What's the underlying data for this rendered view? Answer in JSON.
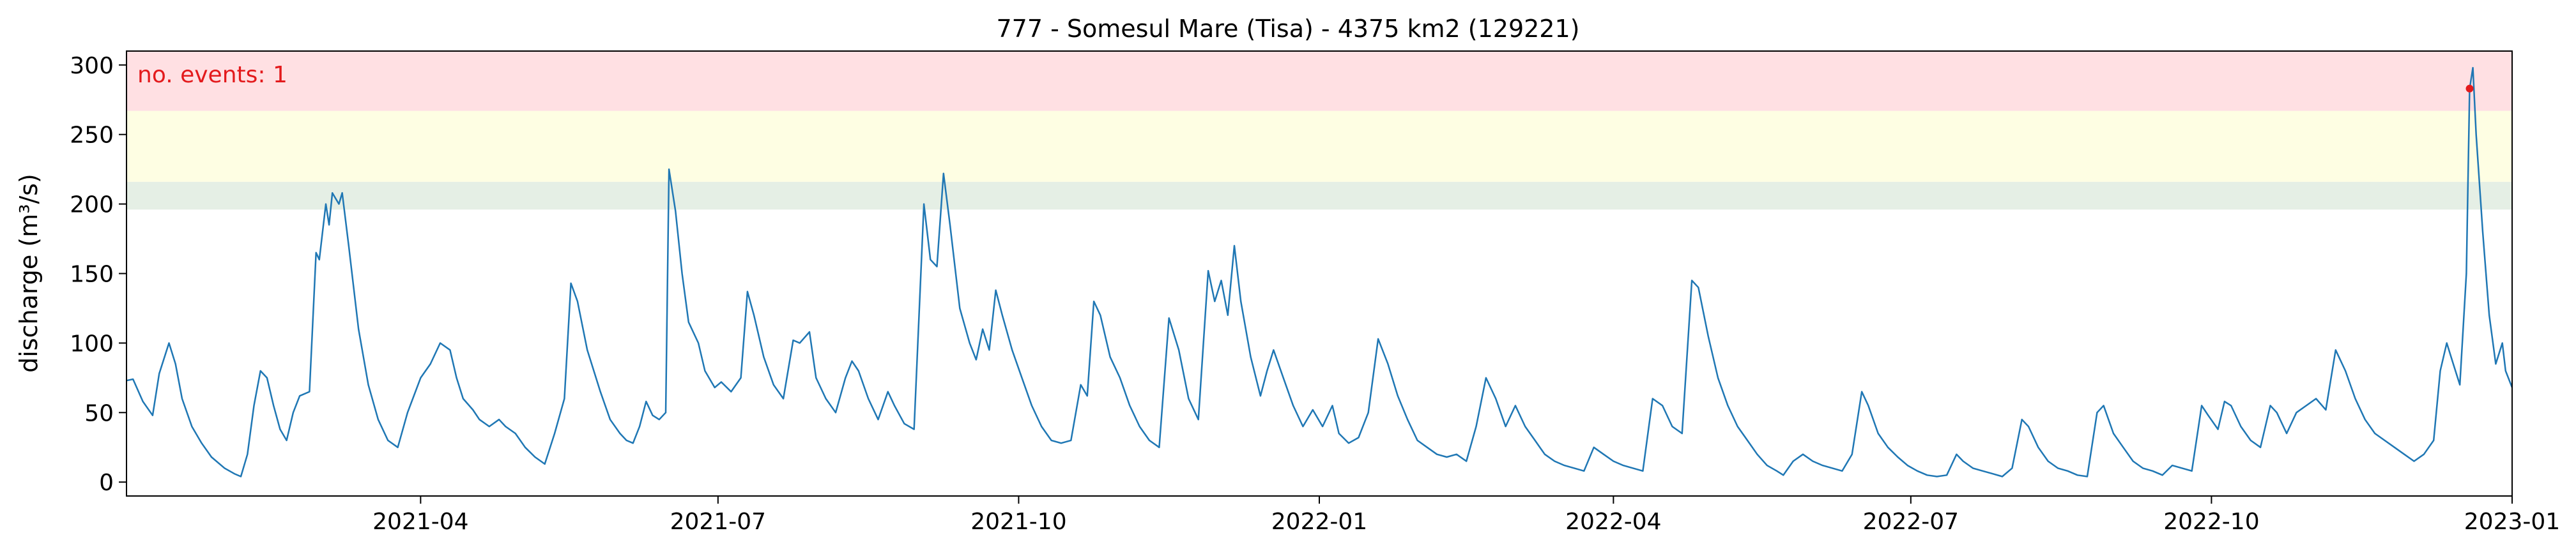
{
  "chart_data": {
    "type": "line",
    "title": "777 - Somesul Mare (Tisa) - 4375 km2 (129221)",
    "xlabel": "",
    "ylabel": "discharge (m³/s)",
    "xlim": [
      "2021-01-01",
      "2023-01-01"
    ],
    "ylim": [
      -10,
      310
    ],
    "x_ticks": [
      "2021-04",
      "2021-07",
      "2021-10",
      "2022-01",
      "2022-04",
      "2022-07",
      "2022-10",
      "2023-01"
    ],
    "x_tick_dates": [
      "2021-04-01",
      "2021-07-01",
      "2021-10-01",
      "2022-01-01",
      "2022-04-01",
      "2022-07-01",
      "2022-10-01",
      "2023-01-01"
    ],
    "y_ticks": [
      0,
      50,
      100,
      150,
      200,
      250,
      300
    ],
    "grid": false,
    "bands": [
      {
        "from": 196,
        "to": 216,
        "color": "#e5efe5"
      },
      {
        "from": 216,
        "to": 267,
        "color": "#fefee3"
      },
      {
        "from": 267,
        "to": 310,
        "color": "#ffe0e3"
      }
    ],
    "annotation": {
      "text": "no. events: 1",
      "color": "#e31a1c",
      "position": "top-left"
    },
    "events": [
      {
        "x": "2022-12-19",
        "y": 283,
        "color": "#e31a1c"
      }
    ],
    "series": [
      {
        "color": "#1f77b4",
        "points": [
          [
            "2021-01-01",
            73
          ],
          [
            "2021-01-03",
            74
          ],
          [
            "2021-01-06",
            58
          ],
          [
            "2021-01-09",
            48
          ],
          [
            "2021-01-11",
            78
          ],
          [
            "2021-01-14",
            100
          ],
          [
            "2021-01-16",
            85
          ],
          [
            "2021-01-18",
            60
          ],
          [
            "2021-01-21",
            40
          ],
          [
            "2021-01-24",
            28
          ],
          [
            "2021-01-27",
            18
          ],
          [
            "2021-01-31",
            10
          ],
          [
            "2021-02-03",
            6
          ],
          [
            "2021-02-05",
            4
          ],
          [
            "2021-02-07",
            20
          ],
          [
            "2021-02-09",
            55
          ],
          [
            "2021-02-11",
            80
          ],
          [
            "2021-02-13",
            75
          ],
          [
            "2021-02-15",
            55
          ],
          [
            "2021-02-17",
            38
          ],
          [
            "2021-02-19",
            30
          ],
          [
            "2021-02-21",
            50
          ],
          [
            "2021-02-23",
            62
          ],
          [
            "2021-02-26",
            65
          ],
          [
            "2021-02-28",
            165
          ],
          [
            "2021-03-01",
            160
          ],
          [
            "2021-03-03",
            200
          ],
          [
            "2021-03-04",
            185
          ],
          [
            "2021-03-05",
            208
          ],
          [
            "2021-03-07",
            200
          ],
          [
            "2021-03-08",
            208
          ],
          [
            "2021-03-10",
            170
          ],
          [
            "2021-03-13",
            110
          ],
          [
            "2021-03-16",
            70
          ],
          [
            "2021-03-19",
            45
          ],
          [
            "2021-03-22",
            30
          ],
          [
            "2021-03-25",
            25
          ],
          [
            "2021-03-28",
            50
          ],
          [
            "2021-04-01",
            75
          ],
          [
            "2021-04-04",
            85
          ],
          [
            "2021-04-07",
            100
          ],
          [
            "2021-04-10",
            95
          ],
          [
            "2021-04-12",
            75
          ],
          [
            "2021-04-14",
            60
          ],
          [
            "2021-04-17",
            52
          ],
          [
            "2021-04-19",
            45
          ],
          [
            "2021-04-22",
            40
          ],
          [
            "2021-04-25",
            45
          ],
          [
            "2021-04-27",
            40
          ],
          [
            "2021-04-30",
            35
          ],
          [
            "2021-05-03",
            25
          ],
          [
            "2021-05-06",
            18
          ],
          [
            "2021-05-09",
            13
          ],
          [
            "2021-05-12",
            35
          ],
          [
            "2021-05-15",
            60
          ],
          [
            "2021-05-17",
            143
          ],
          [
            "2021-05-19",
            130
          ],
          [
            "2021-05-22",
            95
          ],
          [
            "2021-05-26",
            65
          ],
          [
            "2021-05-29",
            45
          ],
          [
            "2021-06-01",
            35
          ],
          [
            "2021-06-03",
            30
          ],
          [
            "2021-06-05",
            28
          ],
          [
            "2021-06-07",
            40
          ],
          [
            "2021-06-09",
            58
          ],
          [
            "2021-06-11",
            48
          ],
          [
            "2021-06-13",
            45
          ],
          [
            "2021-06-15",
            50
          ],
          [
            "2021-06-16",
            225
          ],
          [
            "2021-06-18",
            195
          ],
          [
            "2021-06-20",
            150
          ],
          [
            "2021-06-22",
            115
          ],
          [
            "2021-06-25",
            100
          ],
          [
            "2021-06-27",
            80
          ],
          [
            "2021-06-30",
            68
          ],
          [
            "2021-07-02",
            72
          ],
          [
            "2021-07-05",
            65
          ],
          [
            "2021-07-08",
            75
          ],
          [
            "2021-07-10",
            137
          ],
          [
            "2021-07-12",
            120
          ],
          [
            "2021-07-15",
            90
          ],
          [
            "2021-07-18",
            70
          ],
          [
            "2021-07-21",
            60
          ],
          [
            "2021-07-24",
            102
          ],
          [
            "2021-07-26",
            100
          ],
          [
            "2021-07-29",
            108
          ],
          [
            "2021-07-31",
            75
          ],
          [
            "2021-08-03",
            60
          ],
          [
            "2021-08-06",
            50
          ],
          [
            "2021-08-09",
            75
          ],
          [
            "2021-08-11",
            87
          ],
          [
            "2021-08-13",
            80
          ],
          [
            "2021-08-16",
            60
          ],
          [
            "2021-08-19",
            45
          ],
          [
            "2021-08-22",
            65
          ],
          [
            "2021-08-24",
            55
          ],
          [
            "2021-08-27",
            42
          ],
          [
            "2021-08-30",
            38
          ],
          [
            "2021-09-02",
            200
          ],
          [
            "2021-09-04",
            160
          ],
          [
            "2021-09-06",
            155
          ],
          [
            "2021-09-08",
            222
          ],
          [
            "2021-09-10",
            185
          ],
          [
            "2021-09-13",
            125
          ],
          [
            "2021-09-16",
            100
          ],
          [
            "2021-09-18",
            88
          ],
          [
            "2021-09-20",
            110
          ],
          [
            "2021-09-22",
            95
          ],
          [
            "2021-09-24",
            138
          ],
          [
            "2021-09-26",
            120
          ],
          [
            "2021-09-29",
            95
          ],
          [
            "2021-10-02",
            75
          ],
          [
            "2021-10-05",
            55
          ],
          [
            "2021-10-08",
            40
          ],
          [
            "2021-10-11",
            30
          ],
          [
            "2021-10-14",
            28
          ],
          [
            "2021-10-17",
            30
          ],
          [
            "2021-10-20",
            70
          ],
          [
            "2021-10-22",
            62
          ],
          [
            "2021-10-24",
            130
          ],
          [
            "2021-10-26",
            120
          ],
          [
            "2021-10-29",
            90
          ],
          [
            "2021-11-01",
            75
          ],
          [
            "2021-11-04",
            55
          ],
          [
            "2021-11-07",
            40
          ],
          [
            "2021-11-10",
            30
          ],
          [
            "2021-11-13",
            25
          ],
          [
            "2021-11-16",
            118
          ],
          [
            "2021-11-19",
            95
          ],
          [
            "2021-11-22",
            60
          ],
          [
            "2021-11-25",
            45
          ],
          [
            "2021-11-28",
            152
          ],
          [
            "2021-11-30",
            130
          ],
          [
            "2021-12-02",
            145
          ],
          [
            "2021-12-04",
            120
          ],
          [
            "2021-12-06",
            170
          ],
          [
            "2021-12-08",
            130
          ],
          [
            "2021-12-11",
            90
          ],
          [
            "2021-12-14",
            62
          ],
          [
            "2021-12-16",
            80
          ],
          [
            "2021-12-18",
            95
          ],
          [
            "2021-12-21",
            75
          ],
          [
            "2021-12-24",
            55
          ],
          [
            "2021-12-27",
            40
          ],
          [
            "2021-12-30",
            52
          ],
          [
            "2022-01-02",
            40
          ],
          [
            "2022-01-05",
            55
          ],
          [
            "2022-01-07",
            35
          ],
          [
            "2022-01-10",
            28
          ],
          [
            "2022-01-13",
            32
          ],
          [
            "2022-01-16",
            50
          ],
          [
            "2022-01-19",
            103
          ],
          [
            "2022-01-22",
            85
          ],
          [
            "2022-01-25",
            62
          ],
          [
            "2022-01-28",
            45
          ],
          [
            "2022-01-31",
            30
          ],
          [
            "2022-02-03",
            25
          ],
          [
            "2022-02-06",
            20
          ],
          [
            "2022-02-09",
            18
          ],
          [
            "2022-02-12",
            20
          ],
          [
            "2022-02-15",
            15
          ],
          [
            "2022-02-18",
            40
          ],
          [
            "2022-02-21",
            75
          ],
          [
            "2022-02-24",
            60
          ],
          [
            "2022-02-27",
            40
          ],
          [
            "2022-03-02",
            55
          ],
          [
            "2022-03-05",
            40
          ],
          [
            "2022-03-08",
            30
          ],
          [
            "2022-03-11",
            20
          ],
          [
            "2022-03-14",
            15
          ],
          [
            "2022-03-17",
            12
          ],
          [
            "2022-03-20",
            10
          ],
          [
            "2022-03-23",
            8
          ],
          [
            "2022-03-26",
            25
          ],
          [
            "2022-03-29",
            20
          ],
          [
            "2022-04-01",
            15
          ],
          [
            "2022-04-04",
            12
          ],
          [
            "2022-04-07",
            10
          ],
          [
            "2022-04-10",
            8
          ],
          [
            "2022-04-13",
            60
          ],
          [
            "2022-04-16",
            55
          ],
          [
            "2022-04-19",
            40
          ],
          [
            "2022-04-22",
            35
          ],
          [
            "2022-04-25",
            145
          ],
          [
            "2022-04-27",
            140
          ],
          [
            "2022-04-30",
            105
          ],
          [
            "2022-05-03",
            75
          ],
          [
            "2022-05-06",
            55
          ],
          [
            "2022-05-09",
            40
          ],
          [
            "2022-05-12",
            30
          ],
          [
            "2022-05-15",
            20
          ],
          [
            "2022-05-18",
            12
          ],
          [
            "2022-05-21",
            8
          ],
          [
            "2022-05-23",
            5
          ],
          [
            "2022-05-26",
            15
          ],
          [
            "2022-05-29",
            20
          ],
          [
            "2022-06-01",
            15
          ],
          [
            "2022-06-04",
            12
          ],
          [
            "2022-06-07",
            10
          ],
          [
            "2022-06-10",
            8
          ],
          [
            "2022-06-13",
            20
          ],
          [
            "2022-06-16",
            65
          ],
          [
            "2022-06-18",
            55
          ],
          [
            "2022-06-21",
            35
          ],
          [
            "2022-06-24",
            25
          ],
          [
            "2022-06-27",
            18
          ],
          [
            "2022-06-30",
            12
          ],
          [
            "2022-07-03",
            8
          ],
          [
            "2022-07-06",
            5
          ],
          [
            "2022-07-09",
            4
          ],
          [
            "2022-07-12",
            5
          ],
          [
            "2022-07-15",
            20
          ],
          [
            "2022-07-17",
            15
          ],
          [
            "2022-07-20",
            10
          ],
          [
            "2022-07-23",
            8
          ],
          [
            "2022-07-26",
            6
          ],
          [
            "2022-07-29",
            4
          ],
          [
            "2022-08-01",
            10
          ],
          [
            "2022-08-04",
            45
          ],
          [
            "2022-08-06",
            40
          ],
          [
            "2022-08-09",
            25
          ],
          [
            "2022-08-12",
            15
          ],
          [
            "2022-08-15",
            10
          ],
          [
            "2022-08-18",
            8
          ],
          [
            "2022-08-21",
            5
          ],
          [
            "2022-08-24",
            4
          ],
          [
            "2022-08-27",
            50
          ],
          [
            "2022-08-29",
            55
          ],
          [
            "2022-09-01",
            35
          ],
          [
            "2022-09-04",
            25
          ],
          [
            "2022-09-07",
            15
          ],
          [
            "2022-09-10",
            10
          ],
          [
            "2022-09-13",
            8
          ],
          [
            "2022-09-16",
            5
          ],
          [
            "2022-09-19",
            12
          ],
          [
            "2022-09-22",
            10
          ],
          [
            "2022-09-25",
            8
          ],
          [
            "2022-09-28",
            55
          ],
          [
            "2022-09-30",
            48
          ],
          [
            "2022-10-03",
            38
          ],
          [
            "2022-10-05",
            58
          ],
          [
            "2022-10-07",
            55
          ],
          [
            "2022-10-10",
            40
          ],
          [
            "2022-10-13",
            30
          ],
          [
            "2022-10-16",
            25
          ],
          [
            "2022-10-19",
            55
          ],
          [
            "2022-10-21",
            50
          ],
          [
            "2022-10-24",
            35
          ],
          [
            "2022-10-27",
            50
          ],
          [
            "2022-10-30",
            55
          ],
          [
            "2022-11-02",
            60
          ],
          [
            "2022-11-05",
            52
          ],
          [
            "2022-11-08",
            95
          ],
          [
            "2022-11-11",
            80
          ],
          [
            "2022-11-14",
            60
          ],
          [
            "2022-11-17",
            45
          ],
          [
            "2022-11-20",
            35
          ],
          [
            "2022-11-23",
            30
          ],
          [
            "2022-11-26",
            25
          ],
          [
            "2022-11-29",
            20
          ],
          [
            "2022-12-02",
            15
          ],
          [
            "2022-12-05",
            20
          ],
          [
            "2022-12-08",
            30
          ],
          [
            "2022-12-10",
            80
          ],
          [
            "2022-12-12",
            100
          ],
          [
            "2022-12-14",
            85
          ],
          [
            "2022-12-16",
            70
          ],
          [
            "2022-12-18",
            150
          ],
          [
            "2022-12-19",
            283
          ],
          [
            "2022-12-20",
            298
          ],
          [
            "2022-12-21",
            250
          ],
          [
            "2022-12-23",
            180
          ],
          [
            "2022-12-25",
            120
          ],
          [
            "2022-12-27",
            85
          ],
          [
            "2022-12-29",
            100
          ],
          [
            "2022-12-30",
            80
          ],
          [
            "2023-01-01",
            68
          ]
        ]
      }
    ]
  }
}
